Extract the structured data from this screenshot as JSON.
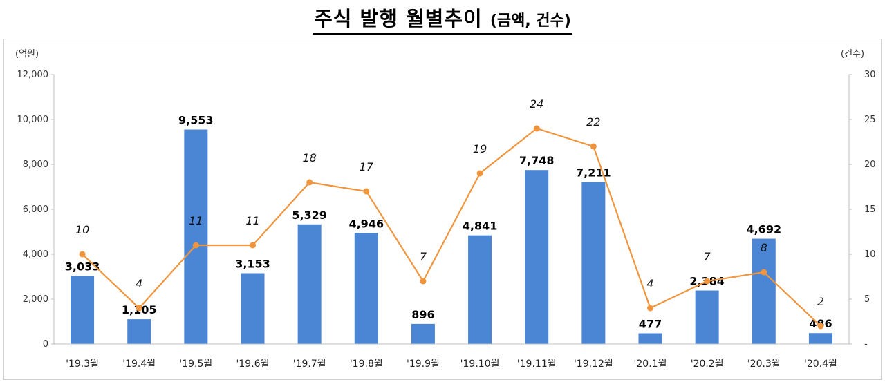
{
  "title": "주식 발행 월별추이",
  "title_suffix": "(금액, 건수)",
  "chart_data": {
    "type": "bar",
    "categories": [
      "'19.3월",
      "'19.4월",
      "'19.5월",
      "'19.6월",
      "'19.7월",
      "'19.8월",
      "'19.9월",
      "'19.10월",
      "'19.11월",
      "'19.12월",
      "'20.1월",
      "'20.2월",
      "'20.3월",
      "'20.4월"
    ],
    "series": [
      {
        "type": "bar",
        "axis": "left",
        "color": "#4a86d4",
        "values": [
          3033,
          1105,
          9553,
          3153,
          5329,
          4946,
          896,
          4841,
          7748,
          7211,
          477,
          2384,
          4692,
          486
        ],
        "labels": [
          "3,033",
          "1,105",
          "9,553",
          "3,153",
          "5,329",
          "4,946",
          "896",
          "4,841",
          "7,748",
          "7,211",
          "477",
          "2,384",
          "4,692",
          "486"
        ]
      },
      {
        "type": "line",
        "axis": "right",
        "color": "#f0953d",
        "values": [
          10,
          4,
          11,
          11,
          18,
          17,
          7,
          19,
          24,
          22,
          4,
          7,
          8,
          2
        ],
        "labels": [
          "10",
          "4",
          "11",
          "11",
          "18",
          "17",
          "7",
          "19",
          "24",
          "22",
          "4",
          "7",
          "8",
          "2"
        ]
      }
    ],
    "ylabel_left": "(억원)",
    "ylabel_right": "(건수)",
    "ylim_left": [
      0,
      12000
    ],
    "ylim_right": [
      0,
      30
    ],
    "yticks_left": [
      "0",
      "2,000",
      "4,000",
      "6,000",
      "8,000",
      "10,000",
      "12,000"
    ],
    "yticks_right": [
      "-",
      "5",
      "10",
      "15",
      "20",
      "25",
      "30"
    ],
    "grid": false,
    "legend": "none"
  }
}
